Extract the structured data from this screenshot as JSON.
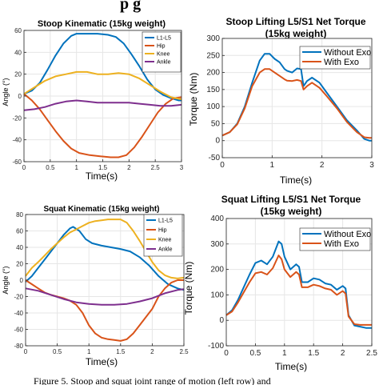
{
  "header_fragment": "p      g",
  "caption": "Figure 5. Stoop and squat joint range of motion (left row) and",
  "colors": {
    "blue": "#0072bd",
    "orange": "#d95319",
    "yellow": "#edb120",
    "purple": "#7e2f8e"
  },
  "chart_data": [
    {
      "type": "line",
      "title": "Stoop Kinematic (15kg weight)",
      "xlabel": "Time(s)",
      "ylabel": "Angle (°)",
      "xlim": [
        0,
        3
      ],
      "ylim": [
        -60,
        60
      ],
      "xticks": [
        0,
        0.5,
        1,
        1.5,
        2,
        2.5,
        3
      ],
      "xtick_labels": [
        "0",
        "0.5",
        "1",
        "1.5",
        "2",
        "2.5",
        "3"
      ],
      "yticks": [
        -60,
        -40,
        -20,
        0,
        20,
        40,
        60
      ],
      "ytick_labels": [
        "-60",
        "-40",
        "-20",
        "0",
        "20",
        "40",
        "60"
      ],
      "grid": true,
      "legend_position": "top-right",
      "series": [
        {
          "name": "L1-L5",
          "color": "#0072bd",
          "x": [
            0,
            0.15,
            0.3,
            0.45,
            0.6,
            0.75,
            0.9,
            1.0,
            1.2,
            1.4,
            1.6,
            1.75,
            1.9,
            2.05,
            2.2,
            2.35,
            2.5,
            2.65,
            2.8,
            2.95,
            3.0
          ],
          "y": [
            2,
            5,
            12,
            24,
            37,
            48,
            55,
            57,
            57,
            57,
            56,
            54,
            48,
            38,
            27,
            15,
            6,
            1,
            -2,
            -4,
            -4
          ]
        },
        {
          "name": "Hip",
          "color": "#d95319",
          "x": [
            0,
            0.15,
            0.3,
            0.45,
            0.6,
            0.75,
            0.9,
            1.05,
            1.25,
            1.45,
            1.65,
            1.8,
            1.95,
            2.1,
            2.25,
            2.4,
            2.55,
            2.7,
            2.85,
            3.0
          ],
          "y": [
            2,
            -4,
            -12,
            -22,
            -32,
            -41,
            -48,
            -52,
            -54,
            -55,
            -56,
            -56,
            -54,
            -47,
            -37,
            -26,
            -15,
            -7,
            -2,
            -1
          ]
        },
        {
          "name": "Knee",
          "color": "#edb120",
          "x": [
            0,
            0.2,
            0.4,
            0.6,
            0.8,
            1.0,
            1.2,
            1.4,
            1.6,
            1.8,
            2.0,
            2.2,
            2.4,
            2.6,
            2.8,
            3.0
          ],
          "y": [
            2,
            8,
            14,
            18,
            20,
            22,
            22,
            20,
            20,
            21,
            20,
            16,
            10,
            4,
            -1,
            -3
          ]
        },
        {
          "name": "Ankle",
          "color": "#7e2f8e",
          "x": [
            0,
            0.2,
            0.4,
            0.6,
            0.8,
            1.0,
            1.2,
            1.4,
            1.6,
            1.8,
            2.0,
            2.2,
            2.4,
            2.6,
            2.8,
            3.0
          ],
          "y": [
            -13,
            -12,
            -10,
            -7,
            -5,
            -4,
            -5,
            -6,
            -6,
            -6,
            -6,
            -7,
            -8,
            -9,
            -9,
            -8
          ]
        }
      ]
    },
    {
      "type": "line",
      "title": "Stoop Lifting L5/S1 Net Torque",
      "subtitle": "(15kg weight)",
      "xlabel": "Time(s)",
      "ylabel": "Torque (Nm)",
      "xlim": [
        0,
        3
      ],
      "ylim": [
        -50,
        300
      ],
      "xticks": [
        0,
        1,
        2,
        3
      ],
      "xtick_labels": [
        "0",
        "1",
        "2",
        "3"
      ],
      "yticks": [
        -50,
        0,
        50,
        100,
        150,
        200,
        250,
        300
      ],
      "ytick_labels": [
        "-50",
        "0",
        "50",
        "100",
        "150",
        "200",
        "250",
        "300"
      ],
      "grid": true,
      "legend_position": "top-right",
      "series": [
        {
          "name": "Without Exo",
          "color": "#0072bd",
          "x": [
            0,
            0.15,
            0.3,
            0.45,
            0.6,
            0.75,
            0.85,
            0.95,
            1.05,
            1.15,
            1.25,
            1.3,
            1.4,
            1.5,
            1.58,
            1.63,
            1.7,
            1.8,
            1.95,
            2.1,
            2.3,
            2.5,
            2.7,
            2.85,
            2.95,
            3.0
          ],
          "y": [
            15,
            25,
            50,
            100,
            170,
            235,
            255,
            255,
            240,
            230,
            210,
            205,
            200,
            212,
            210,
            160,
            175,
            185,
            170,
            140,
            100,
            60,
            30,
            5,
            0,
            0
          ]
        },
        {
          "name": "With Exo",
          "color": "#d95319",
          "x": [
            0,
            0.15,
            0.3,
            0.45,
            0.6,
            0.75,
            0.85,
            0.95,
            1.05,
            1.15,
            1.25,
            1.3,
            1.4,
            1.5,
            1.58,
            1.63,
            1.7,
            1.8,
            1.95,
            2.1,
            2.3,
            2.5,
            2.7,
            2.85,
            2.95,
            3.0
          ],
          "y": [
            15,
            25,
            48,
            95,
            160,
            200,
            210,
            210,
            200,
            190,
            180,
            176,
            175,
            178,
            175,
            150,
            160,
            170,
            155,
            130,
            95,
            55,
            25,
            10,
            8,
            8
          ]
        }
      ]
    },
    {
      "type": "line",
      "title": "Squat Kinematic (15kg weight)",
      "xlabel": "Time(s)",
      "ylabel": "Angle (°)",
      "xlim": [
        0,
        2.5
      ],
      "ylim": [
        -80,
        80
      ],
      "xticks": [
        0,
        0.5,
        1,
        1.5,
        2,
        2.5
      ],
      "xtick_labels": [
        "0",
        "0.5",
        "1",
        "1.5",
        "2",
        "2.5"
      ],
      "yticks": [
        -80,
        -60,
        -40,
        -20,
        0,
        20,
        40,
        60,
        80
      ],
      "ytick_labels": [
        "-80",
        "-60",
        "-40",
        "-20",
        "0",
        "20",
        "40",
        "60",
        "80"
      ],
      "grid": true,
      "legend_position": "top-right",
      "series": [
        {
          "name": "L1-L5",
          "color": "#0072bd",
          "x": [
            0,
            0.1,
            0.2,
            0.3,
            0.4,
            0.5,
            0.6,
            0.7,
            0.75,
            0.85,
            0.95,
            1.05,
            1.2,
            1.35,
            1.5,
            1.65,
            1.8,
            1.95,
            2.1,
            2.25,
            2.4,
            2.5
          ],
          "y": [
            -2,
            5,
            15,
            25,
            35,
            45,
            55,
            63,
            65,
            60,
            50,
            45,
            42,
            40,
            38,
            35,
            28,
            18,
            5,
            -5,
            -10,
            -12
          ]
        },
        {
          "name": "Hip",
          "color": "#d95319",
          "x": [
            0,
            0.1,
            0.2,
            0.3,
            0.4,
            0.5,
            0.6,
            0.7,
            0.8,
            0.9,
            1.0,
            1.1,
            1.2,
            1.3,
            1.4,
            1.5,
            1.6,
            1.7,
            1.8,
            1.9,
            2.0,
            2.1,
            2.2,
            2.3,
            2.4,
            2.5
          ],
          "y": [
            0,
            -5,
            -10,
            -15,
            -18,
            -20,
            -22,
            -25,
            -30,
            -40,
            -55,
            -65,
            -70,
            -72,
            -73,
            -74,
            -72,
            -65,
            -55,
            -45,
            -35,
            -20,
            -10,
            -3,
            0,
            0
          ]
        },
        {
          "name": "Knee",
          "color": "#edb120",
          "x": [
            0,
            0.1,
            0.2,
            0.3,
            0.4,
            0.5,
            0.6,
            0.7,
            0.8,
            0.9,
            1.0,
            1.1,
            1.2,
            1.3,
            1.4,
            1.5,
            1.6,
            1.7,
            1.8,
            1.9,
            2.0,
            2.1,
            2.2,
            2.3,
            2.4,
            2.5
          ],
          "y": [
            5,
            15,
            22,
            30,
            38,
            45,
            52,
            58,
            62,
            66,
            70,
            72,
            73,
            74,
            74,
            74,
            70,
            60,
            48,
            35,
            22,
            12,
            6,
            3,
            2,
            3
          ]
        },
        {
          "name": "Ankle",
          "color": "#7e2f8e",
          "x": [
            0,
            0.2,
            0.4,
            0.6,
            0.8,
            1.0,
            1.2,
            1.4,
            1.6,
            1.8,
            2.0,
            2.2,
            2.4,
            2.5
          ],
          "y": [
            -10,
            -13,
            -18,
            -23,
            -27,
            -29,
            -30,
            -30,
            -29,
            -26,
            -22,
            -16,
            -12,
            -11
          ]
        }
      ]
    },
    {
      "type": "line",
      "title": "Squat Lifting L5/S1 Net Torque",
      "subtitle": "(15kg weight)",
      "xlabel": "Time(s)",
      "ylabel": "Torque (Nm)",
      "xlim": [
        0,
        2.5
      ],
      "ylim": [
        -100,
        400
      ],
      "xticks": [
        0,
        0.5,
        1,
        1.5,
        2,
        2.5
      ],
      "xtick_labels": [
        "0",
        "0.5",
        "1",
        "1.5",
        "2",
        "2.5"
      ],
      "yticks": [
        -100,
        0,
        100,
        200,
        300,
        400
      ],
      "ytick_labels": [
        "-100",
        "0",
        "100",
        "200",
        "300",
        "400"
      ],
      "grid": true,
      "legend_position": "top-right",
      "series": [
        {
          "name": "Without Exo",
          "color": "#0072bd",
          "x": [
            0,
            0.1,
            0.2,
            0.3,
            0.4,
            0.5,
            0.6,
            0.7,
            0.8,
            0.9,
            0.95,
            1.0,
            1.1,
            1.2,
            1.25,
            1.3,
            1.4,
            1.5,
            1.6,
            1.7,
            1.8,
            1.9,
            2.0,
            2.05,
            2.1,
            2.2,
            2.3,
            2.4,
            2.5
          ],
          "y": [
            20,
            40,
            80,
            130,
            180,
            225,
            235,
            220,
            250,
            310,
            300,
            250,
            200,
            220,
            210,
            150,
            150,
            165,
            160,
            145,
            140,
            120,
            135,
            125,
            20,
            -20,
            -25,
            -30,
            -30
          ]
        },
        {
          "name": "With Exo",
          "color": "#d95319",
          "x": [
            0,
            0.1,
            0.2,
            0.3,
            0.4,
            0.5,
            0.6,
            0.7,
            0.8,
            0.9,
            0.95,
            1.0,
            1.1,
            1.2,
            1.25,
            1.3,
            1.4,
            1.5,
            1.6,
            1.7,
            1.8,
            1.9,
            2.0,
            2.05,
            2.1,
            2.2,
            2.3,
            2.4,
            2.5
          ],
          "y": [
            20,
            35,
            70,
            110,
            150,
            185,
            190,
            180,
            205,
            255,
            240,
            200,
            170,
            190,
            180,
            130,
            130,
            140,
            135,
            125,
            120,
            100,
            115,
            105,
            15,
            -15,
            -18,
            -18,
            -18
          ]
        }
      ]
    }
  ]
}
